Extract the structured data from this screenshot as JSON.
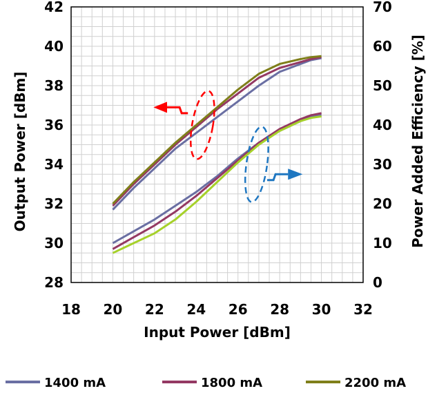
{
  "chart_data": {
    "type": "line",
    "xlabel": "Input Power [dBm]",
    "ylabel_left": "Output Power [dBm]",
    "ylabel_right": "Power Added Efficiency [%]",
    "xlim": [
      18,
      32
    ],
    "ylim_left": [
      28,
      42
    ],
    "ylim_right": [
      0,
      70
    ],
    "x_ticks": [
      "18",
      "20",
      "22",
      "24",
      "26",
      "28",
      "30",
      "32"
    ],
    "y_left_ticks": [
      "28",
      "30",
      "32",
      "34",
      "36",
      "38",
      "40",
      "42"
    ],
    "y_right_ticks": [
      "0",
      "10",
      "20",
      "30",
      "40",
      "50",
      "60",
      "70"
    ],
    "grid": true,
    "legend_position": "bottom",
    "series": [
      {
        "name": "1400 mA",
        "axis": "left",
        "group": "output_power",
        "color": "#6a6fa3",
        "x": [
          20,
          21,
          22,
          23,
          24,
          25,
          26,
          27,
          28,
          29,
          29.5,
          30
        ],
        "y": [
          31.7,
          32.8,
          33.8,
          34.8,
          35.6,
          36.4,
          37.2,
          38.0,
          38.7,
          39.1,
          39.3,
          39.4
        ]
      },
      {
        "name": "1800 mA",
        "axis": "left",
        "group": "output_power",
        "color": "#943963",
        "x": [
          20,
          21,
          22,
          23,
          24,
          25,
          26,
          27,
          28,
          29,
          29.5,
          30
        ],
        "y": [
          31.9,
          33.0,
          34.0,
          35.0,
          35.9,
          36.8,
          37.6,
          38.4,
          38.9,
          39.2,
          39.35,
          39.45
        ]
      },
      {
        "name": "2200 mA",
        "axis": "left",
        "group": "output_power",
        "color": "#7f7f1a",
        "x": [
          20,
          21,
          22,
          23,
          24,
          25,
          26,
          27,
          28,
          29,
          29.5,
          30
        ],
        "y": [
          32.0,
          33.1,
          34.1,
          35.1,
          36.0,
          36.9,
          37.8,
          38.6,
          39.1,
          39.35,
          39.45,
          39.5
        ]
      },
      {
        "name": "1400 mA",
        "axis": "right",
        "group": "pae",
        "color": "#6a6fa3",
        "x": [
          20,
          21,
          22,
          23,
          24,
          25,
          26,
          27,
          28,
          29,
          29.5,
          30
        ],
        "y": [
          10.0,
          13.0,
          16.0,
          19.5,
          23.0,
          27.0,
          31.5,
          35.5,
          38.5,
          41.0,
          42.0,
          42.5
        ]
      },
      {
        "name": "1800 mA",
        "axis": "right",
        "group": "pae",
        "color": "#943963",
        "x": [
          20,
          21,
          22,
          23,
          24,
          25,
          26,
          27,
          28,
          29,
          29.5,
          30
        ],
        "y": [
          8.5,
          11.5,
          14.5,
          18.0,
          22.0,
          26.5,
          31.0,
          35.5,
          39.0,
          41.5,
          42.5,
          43.0
        ]
      },
      {
        "name": "2200 mA",
        "axis": "right",
        "group": "pae",
        "color": "#a6d12a",
        "x": [
          20,
          21,
          22,
          23,
          24,
          25,
          26,
          27,
          28,
          29,
          29.5,
          30
        ],
        "y": [
          7.5,
          10.0,
          12.5,
          16.0,
          20.5,
          25.5,
          30.5,
          35.0,
          38.5,
          41.0,
          41.8,
          42.2
        ]
      }
    ],
    "annotations": [
      {
        "label": "left-arrow",
        "color": "#ff0000",
        "points_to": "left axis (Output Power)"
      },
      {
        "label": "right-arrow",
        "color": "#1f77c1",
        "points_to": "right axis (PAE)"
      }
    ]
  },
  "legend": {
    "items": [
      {
        "label": "1400 mA",
        "color": "#6a6fa3"
      },
      {
        "label": "1800 mA",
        "color": "#943963"
      },
      {
        "label": "2200 mA",
        "color": "#7f7f1a"
      }
    ]
  }
}
